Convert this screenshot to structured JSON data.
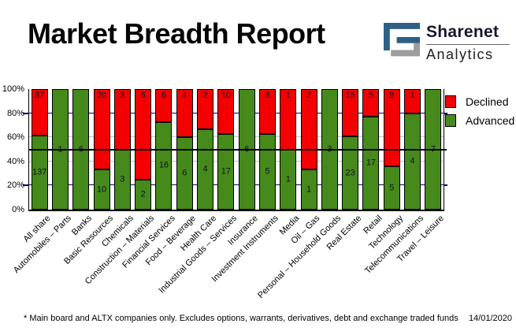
{
  "title": "Market Breadth Report",
  "logo": {
    "name": "Sharenet",
    "sub": "Analytics",
    "blue": "#2e6086",
    "gray": "#9d9d9d"
  },
  "legend": {
    "items": [
      {
        "label": "Declined",
        "color": "#f40000"
      },
      {
        "label": "Advanced",
        "color": "#458a1b"
      }
    ]
  },
  "footer": {
    "note": "* Main board and ALTX companies only. Excludes options, warrants, derivatives, debt and exchange traded funds",
    "date": "14/01/2020"
  },
  "chart_data": {
    "type": "bar",
    "stacked": true,
    "stack_mode": "percent",
    "title": "Market Breadth Report",
    "categories": [
      "All share",
      "Automobiles – Parts",
      "Banks",
      "Basic Resources",
      "Chemicals",
      "Construction – Materials",
      "Financial Services",
      "Food – Beverage",
      "Health Care",
      "Industrial Goods – Services",
      "Insurance",
      "Investment Instruments",
      "Media",
      "Oil – Gas",
      "Personal – Household Goods",
      "Real Estate",
      "Retail",
      "Technology",
      "Telecommunications",
      "Travel – Leisure"
    ],
    "series": [
      {
        "name": "Declined",
        "color": "#f40000",
        "values": [
          87,
          0,
          0,
          20,
          3,
          6,
          6,
          4,
          2,
          10,
          0,
          3,
          1,
          2,
          0,
          15,
          5,
          9,
          1,
          0
        ]
      },
      {
        "name": "Advanced",
        "color": "#458a1b",
        "values": [
          137,
          1,
          6,
          10,
          3,
          2,
          16,
          6,
          4,
          17,
          6,
          5,
          1,
          1,
          3,
          23,
          17,
          5,
          4,
          7
        ]
      }
    ],
    "ylim": [
      0,
      100
    ],
    "y_ticks": [
      {
        "pct": 0,
        "label": "0%"
      },
      {
        "pct": 20,
        "label": "20%"
      },
      {
        "pct": 40,
        "label": "40%"
      },
      {
        "pct": 60,
        "label": "60%"
      },
      {
        "pct": 80,
        "label": "80%"
      },
      {
        "pct": 100,
        "label": "100%"
      }
    ],
    "gridlines": [
      {
        "pct": 20,
        "color": "#000080"
      },
      {
        "pct": 40,
        "color": "#c0c0c0"
      },
      {
        "pct": 60,
        "color": "#c0c0c0"
      },
      {
        "pct": 80,
        "color": "#000080"
      }
    ],
    "midline": {
      "pct": 50,
      "color": "#000000"
    },
    "legend_position": "top-right",
    "grid": true
  }
}
